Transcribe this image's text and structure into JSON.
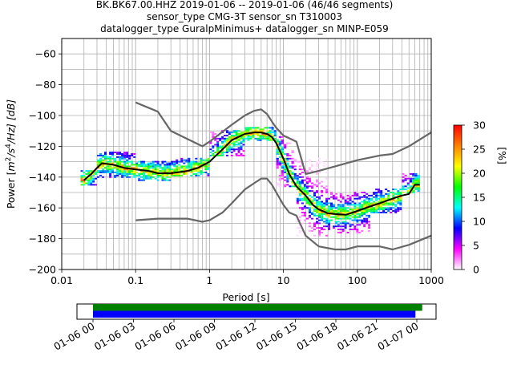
{
  "header": {
    "title_lines": [
      "BK.BK67.00.HHZ   2019-01-06 -- 2019-01-06  (46/46 segments)",
      "sensor_type CMG-3T sensor_sn T310003",
      "datalogger_type GuralpMinimus+ datalogger_sn MINP-E059"
    ]
  },
  "colorbar": {
    "label": "[%]",
    "ticks": [
      "0",
      "5",
      "10",
      "15",
      "20",
      "25",
      "30"
    ],
    "range": [
      0,
      30
    ],
    "colormap": [
      "#ffffff",
      "#ff00ff",
      "#0000ff",
      "#00ffff",
      "#00ff00",
      "#ffff00",
      "#ff8000",
      "#ff0000"
    ]
  },
  "timeline": {
    "ticks": [
      "01-06 00",
      "01-06 03",
      "01-06 06",
      "01-06 09",
      "01-06 12",
      "01-06 15",
      "01-06 18",
      "01-06 21",
      "01-07 00"
    ],
    "coverage": [
      {
        "color": "#008000",
        "start_hours": 0,
        "end_hours": 24.4
      },
      {
        "color": "#0000ff",
        "start_hours": 0,
        "end_hours": 23.9
      }
    ]
  },
  "chart_data": {
    "type": "heatmap",
    "title": "BK.BK67.00.HHZ   2019-01-06 -- 2019-01-06  (46/46 segments)",
    "xlabel": "Period [s]",
    "ylabel": "Power [m²/s⁴/Hz] [dB]",
    "ylabel_parts": {
      "prefix": "Power [",
      "base": "m",
      "sup1": "2",
      "mid": "/s",
      "sup2": "4",
      "suffix": "/Hz] [dB]"
    },
    "x_scale": "log",
    "xlim": [
      0.01,
      1000
    ],
    "ylim": [
      -200,
      -50
    ],
    "xticks": [
      "0.01",
      "0.1",
      "1",
      "10",
      "100",
      "1000"
    ],
    "yticks": [
      "−200",
      "−180",
      "−160",
      "−140",
      "−120",
      "−100",
      "−80",
      "−60"
    ],
    "grid": true,
    "series": [
      {
        "name": "",
        "color": "#000000",
        "x": [
          0.02,
          0.025,
          0.03,
          0.035,
          0.05,
          0.07,
          0.1,
          0.15,
          0.2,
          0.3,
          0.5,
          0.7,
          1,
          1.5,
          2,
          3,
          4,
          5,
          6,
          7,
          8,
          10,
          12,
          15,
          20,
          25,
          30,
          40,
          50,
          70,
          100,
          150,
          200,
          300,
          400,
          500,
          600,
          700
        ],
        "y": [
          -142,
          -138,
          -134,
          -131,
          -132,
          -134,
          -135,
          -136,
          -137.5,
          -137.5,
          -136,
          -134,
          -130,
          -122,
          -116,
          -112,
          -111,
          -111,
          -112,
          -114,
          -118,
          -128,
          -138,
          -146,
          -152,
          -158,
          -161,
          -163.5,
          -164,
          -164.5,
          -162,
          -159,
          -157,
          -154,
          -152,
          -151,
          -145,
          -145
        ]
      },
      {
        "name": "",
        "color": "#666666",
        "x": [
          0.1,
          0.2,
          0.3,
          0.8,
          1,
          2,
          3,
          4,
          5,
          6,
          7,
          8,
          10,
          15,
          20,
          30,
          50,
          100,
          200,
          300,
          500,
          1000
        ],
        "y": [
          -91.5,
          -97.5,
          -110,
          -120,
          -117,
          -106,
          -100,
          -97,
          -96,
          -99,
          -104,
          -108,
          -113,
          -117,
          -138,
          -136,
          -133,
          -129,
          -126,
          -125,
          -120,
          -111
        ]
      },
      {
        "name": "",
        "color": "#666666",
        "x": [
          0.1,
          0.2,
          0.5,
          0.8,
          1,
          1.5,
          2,
          3,
          4,
          5,
          6,
          7,
          8,
          10,
          12,
          15,
          20,
          30,
          50,
          70,
          100,
          200,
          300,
          500,
          1000
        ],
        "y": [
          -168,
          -167,
          -167,
          -169,
          -168,
          -163,
          -157,
          -148,
          -144,
          -141,
          -141,
          -145,
          -150,
          -158,
          -163,
          -165,
          -178,
          -185,
          -187,
          -187,
          -185,
          -185,
          -187,
          -184,
          -178
        ]
      }
    ],
    "density_bands": [
      {
        "x_from": 0.018,
        "x_to": 0.03,
        "y_low": -145,
        "y_high": -136
      },
      {
        "x_from": 0.03,
        "x_to": 0.1,
        "y_low": -140,
        "y_high": -124
      },
      {
        "x_from": 0.1,
        "x_to": 0.3,
        "y_low": -142,
        "y_high": -130
      },
      {
        "x_from": 0.3,
        "x_to": 1,
        "y_low": -139,
        "y_high": -128
      },
      {
        "x_from": 1,
        "x_to": 3,
        "y_low": -126,
        "y_high": -110
      },
      {
        "x_from": 3,
        "x_to": 8,
        "y_low": -116,
        "y_high": -108
      },
      {
        "x_from": 8,
        "x_to": 15,
        "y_low": -146,
        "y_high": -114
      },
      {
        "x_from": 15,
        "x_to": 40,
        "y_low": -178,
        "y_high": -128
      },
      {
        "x_from": 40,
        "x_to": 150,
        "y_low": -176,
        "y_high": -150
      },
      {
        "x_from": 150,
        "x_to": 400,
        "y_low": -163,
        "y_high": -148
      },
      {
        "x_from": 400,
        "x_to": 700,
        "y_low": -150,
        "y_high": -138
      }
    ]
  }
}
